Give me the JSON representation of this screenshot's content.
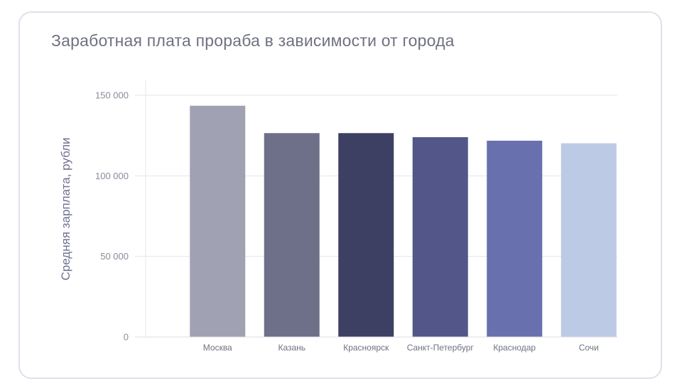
{
  "chart_data": {
    "type": "bar",
    "title": "Заработная плата прораба в зависимости от города",
    "ylabel": "Средняя зарплата, рубли",
    "xlabel": "",
    "categories": [
      "Москва",
      "Казань",
      "Красноярск",
      "Санкт-Петербург",
      "Краснодар",
      "Сочи"
    ],
    "values": [
      143500,
      126500,
      126500,
      124000,
      121800,
      120200
    ],
    "colors": [
      "#a0a1b3",
      "#6e6f89",
      "#3d3f63",
      "#525689",
      "#6970ae",
      "#bccae5"
    ],
    "ylim": [
      0,
      150000
    ],
    "yticks": [
      {
        "value": 0,
        "label": "0"
      },
      {
        "value": 50000,
        "label": "50 000"
      },
      {
        "value": 100000,
        "label": "100 000"
      },
      {
        "value": 150000,
        "label": "150 000"
      }
    ],
    "grid": true
  }
}
